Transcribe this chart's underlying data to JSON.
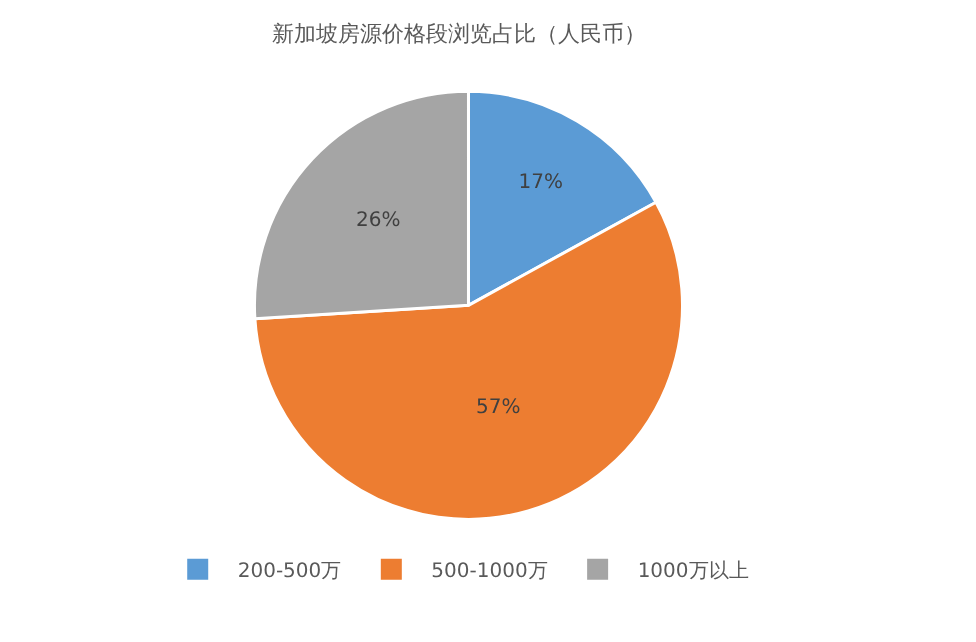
{
  "chart_data": {
    "type": "pie",
    "title": "新加坡房源价格段浏览占比（人民币）",
    "categories": [
      "200-500万",
      "500-1000万",
      "1000万以上"
    ],
    "values": [
      17,
      57,
      26
    ],
    "value_labels": [
      "17%",
      "57%",
      "26%"
    ],
    "colors": [
      "#5b9bd5",
      "#ed7d31",
      "#a5a5a5"
    ],
    "legend": "bottom"
  }
}
